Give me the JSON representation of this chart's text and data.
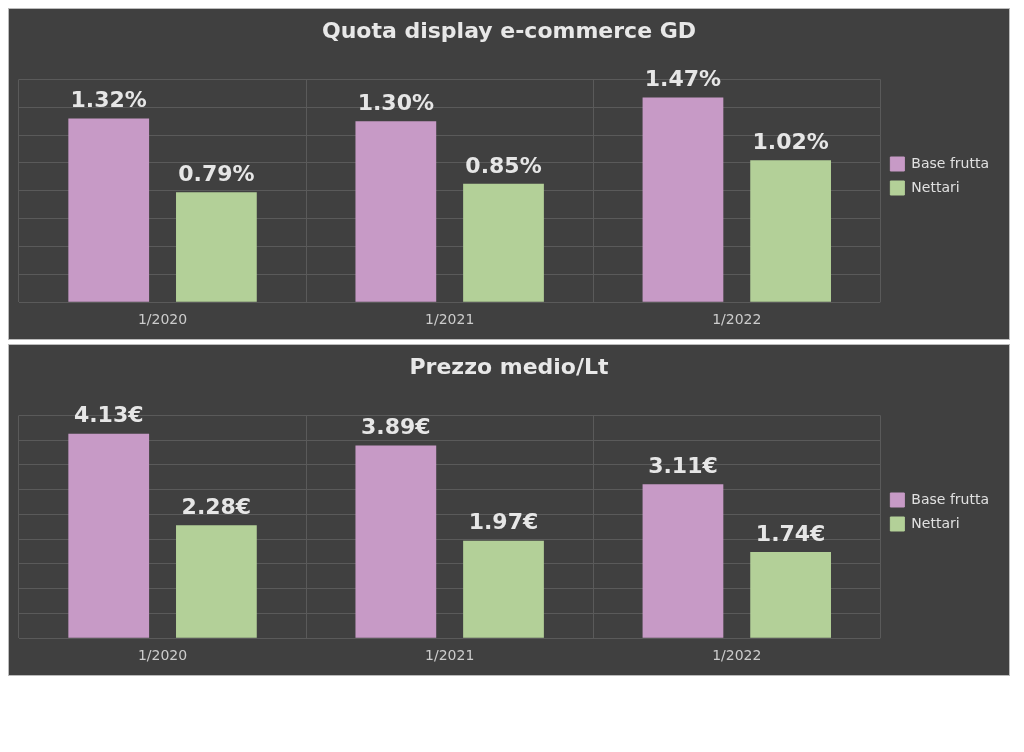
{
  "chart_data": [
    {
      "type": "bar",
      "title": "Quota display e-commerce GD",
      "categories": [
        "1/2020",
        "1/2021",
        "1/2022"
      ],
      "series": [
        {
          "name": "Base frutta",
          "color": "#c79ac6",
          "values": [
            1.32,
            1.3,
            1.47
          ],
          "value_labels": [
            "1.32%",
            "1.30%",
            "1.47%"
          ]
        },
        {
          "name": "Nettari",
          "color": "#b3d098",
          "values": [
            0.79,
            0.85,
            1.02
          ],
          "value_labels": [
            "0.79%",
            "0.85%",
            "1.02%"
          ]
        }
      ],
      "ylim": [
        0,
        1.6
      ],
      "yticks": [
        {
          "value": 0,
          "label": null
        },
        {
          "value": 0.2,
          "label": null
        },
        {
          "value": 0.4,
          "label": null
        },
        {
          "value": 0.6,
          "label": null
        },
        {
          "value": 0.8,
          "label": null
        },
        {
          "value": 1.0,
          "label": null
        },
        {
          "value": 1.2,
          "label": null
        },
        {
          "value": 1.4,
          "label": null
        },
        {
          "value": 1.6,
          "label": null
        }
      ],
      "tick_labels": "x",
      "grid": true,
      "legend": "right"
    },
    {
      "type": "bar",
      "title": "Prezzo medio/Lt",
      "categories": [
        "1/2020",
        "1/2021",
        "1/2022"
      ],
      "series": [
        {
          "name": "Base frutta",
          "color": "#c79ac6",
          "values": [
            4.13,
            3.89,
            3.11
          ],
          "value_labels": [
            "4.13€",
            "3.89€",
            "3.11€"
          ]
        },
        {
          "name": "Nettari",
          "color": "#b3d098",
          "values": [
            2.28,
            1.97,
            1.74
          ],
          "value_labels": [
            "2.28€",
            "1.97€",
            "1.74€"
          ]
        }
      ],
      "ylim": [
        0,
        4.5
      ],
      "yticks": [
        {
          "value": 0,
          "label": null
        },
        {
          "value": 0.5,
          "label": null
        },
        {
          "value": 1,
          "label": null
        },
        {
          "value": 1.5,
          "label": null
        },
        {
          "value": 2,
          "label": null
        },
        {
          "value": 2.5,
          "label": null
        },
        {
          "value": 3,
          "label": null
        },
        {
          "value": 3.5,
          "label": null
        },
        {
          "value": 4,
          "label": null
        },
        {
          "value": 4.5,
          "label": null
        }
      ],
      "tick_labels": "x",
      "grid": true,
      "legend": "right"
    }
  ]
}
